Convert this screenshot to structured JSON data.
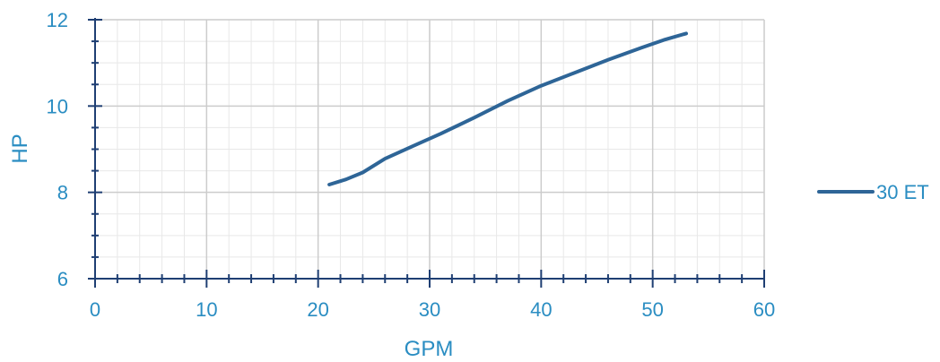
{
  "chart_data": {
    "type": "line",
    "title": "",
    "xlabel": "GPM",
    "ylabel": "HP",
    "xlim": [
      0,
      60
    ],
    "ylim": [
      6,
      12
    ],
    "xticks": [
      "0",
      "10",
      "20",
      "30",
      "40",
      "50",
      "60"
    ],
    "yticks": [
      "6",
      "8",
      "10",
      "12"
    ],
    "grid": true,
    "legend_position": "right",
    "series": [
      {
        "name": "30 ET",
        "x": [
          21,
          22.5,
          24,
          26,
          28.5,
          31,
          34,
          37,
          40,
          43,
          46,
          49,
          51,
          53
        ],
        "y": [
          8.18,
          8.3,
          8.46,
          8.78,
          9.07,
          9.36,
          9.73,
          10.12,
          10.47,
          10.77,
          11.07,
          11.35,
          11.53,
          11.68
        ]
      }
    ]
  },
  "colors": {
    "series": "#2e6597",
    "axis_text": "#2a8dc2",
    "axis_line": "#1f3f73",
    "grid_major": "#cccccc",
    "grid_minor": "#e8e8e8"
  }
}
